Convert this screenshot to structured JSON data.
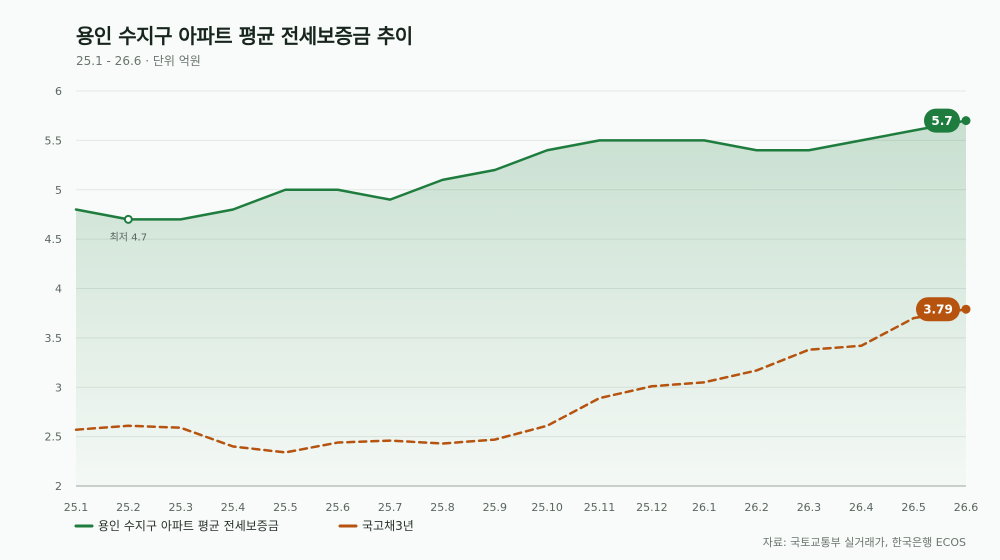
{
  "chart_data": {
    "type": "line",
    "title": "용인 수지구 아파트 평균 전세보증금 추이",
    "subtitle": "25.1 - 26.6 · 단위 억원",
    "source": "자료: 국토교통부 실거래가, 한국은행 ECOS",
    "categories": [
      "25.1",
      "25.2",
      "25.3",
      "25.4",
      "25.5",
      "25.6",
      "25.7",
      "25.8",
      "25.9",
      "25.10",
      "25.11",
      "25.12",
      "26.1",
      "26.2",
      "26.3",
      "26.4",
      "26.5",
      "26.6"
    ],
    "y_ticks": [
      "2",
      "2.5",
      "3",
      "3.5",
      "4",
      "4.5",
      "5",
      "5.5",
      "6"
    ],
    "ylim": [
      2,
      6
    ],
    "grid": true,
    "legend_position": "bottom-left",
    "series": [
      {
        "name": "용인 수지구 아파트 평균 전세보증금",
        "color": "#1e7d3e",
        "style": "solid",
        "values": [
          4.8,
          4.7,
          4.7,
          4.8,
          5.0,
          5.0,
          4.9,
          5.1,
          5.2,
          5.4,
          5.5,
          5.5,
          5.5,
          5.4,
          5.4,
          5.5,
          5.6,
          5.7
        ],
        "end_label": "5.7"
      },
      {
        "name": "국고채3년",
        "color": "#b5530f",
        "style": "dashed",
        "values": [
          2.57,
          2.61,
          2.59,
          2.4,
          2.34,
          2.44,
          2.46,
          2.43,
          2.47,
          2.61,
          2.89,
          3.01,
          3.05,
          3.17,
          3.38,
          3.42,
          3.7,
          3.79
        ],
        "end_label": "3.79"
      }
    ],
    "annotations": [
      {
        "label": "최저 4.7",
        "series": 0,
        "index": 1
      }
    ]
  }
}
